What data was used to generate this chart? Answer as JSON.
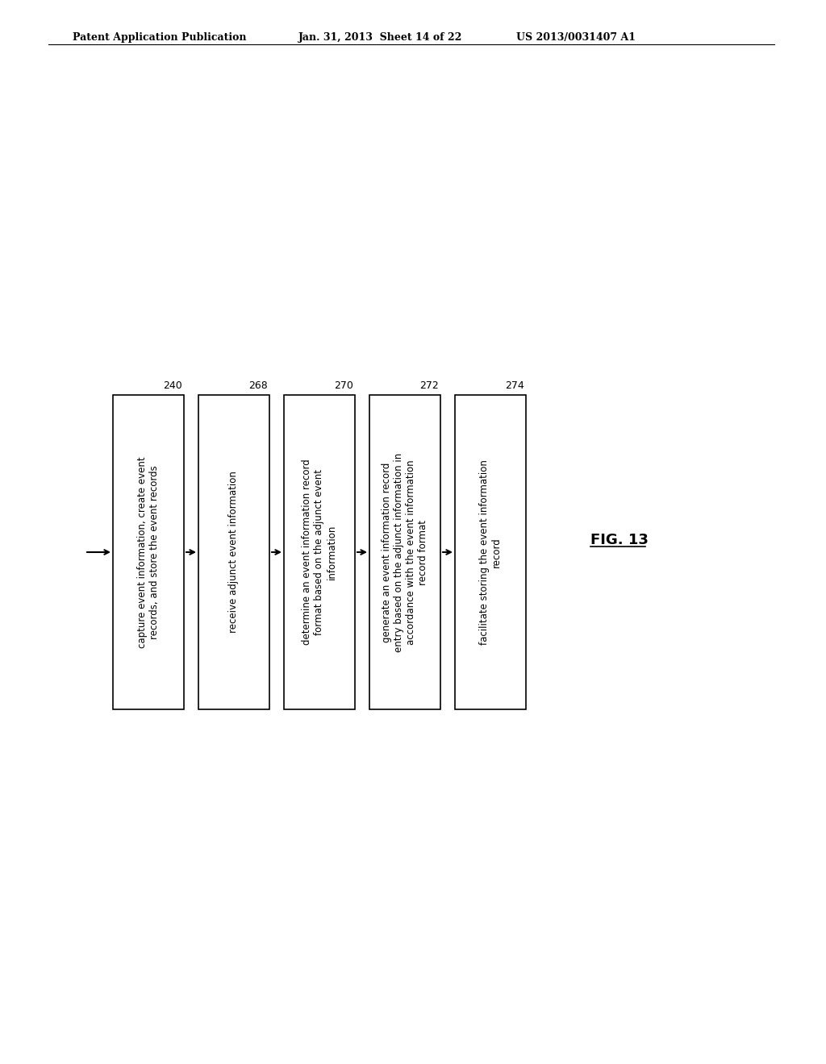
{
  "title_left": "Patent Application Publication",
  "title_mid": "Jan. 31, 2013  Sheet 14 of 22",
  "title_right": "US 2013/0031407 A1",
  "fig_label": "FIG. 13",
  "background_color": "#ffffff",
  "boxes": [
    {
      "id": 240,
      "label": "capture event information, create event\nrecords, and store the event records"
    },
    {
      "id": 268,
      "label": "receive adjunct event information"
    },
    {
      "id": 270,
      "label": "determine an event information record\nformat based on the adjunct event\ninformation"
    },
    {
      "id": 272,
      "label": "generate an event information record\nentry based on the adjunct information in\naccordance with the event information\nrecord format"
    },
    {
      "id": 274,
      "label": "facilitate storing the event information\nrecord"
    }
  ]
}
